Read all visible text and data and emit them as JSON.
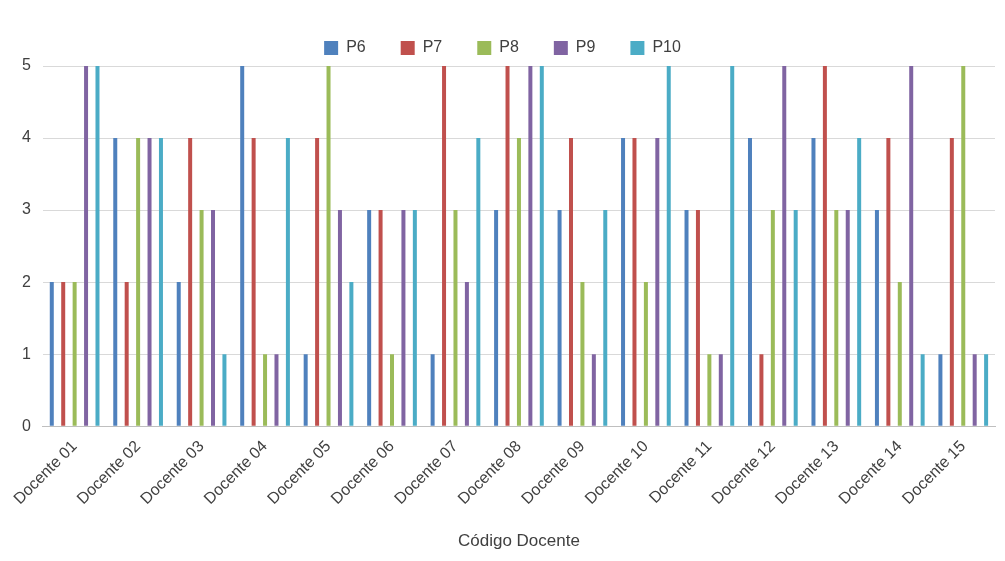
{
  "chart_data": {
    "type": "bar",
    "xlabel": "Código Docente",
    "categories": [
      "Docente 01",
      "Docente 02",
      "Docente 03",
      "Docente 04",
      "Docente 05",
      "Docente 06",
      "Docente 07",
      "Docente 08",
      "Docente 09",
      "Docente 10",
      "Docente 11",
      "Docente 12",
      "Docente 13",
      "Docente 14",
      "Docente 15"
    ],
    "series": [
      {
        "name": "P6",
        "color": "#4f81bd",
        "values": [
          2,
          4,
          2,
          5,
          1,
          3,
          1,
          3,
          3,
          4,
          3,
          4,
          4,
          3,
          1
        ]
      },
      {
        "name": "P7",
        "color": "#c0504d",
        "values": [
          2,
          2,
          4,
          4,
          4,
          3,
          5,
          5,
          4,
          4,
          3,
          1,
          5,
          4,
          4
        ]
      },
      {
        "name": "P8",
        "color": "#9bbb59",
        "values": [
          2,
          4,
          3,
          1,
          5,
          1,
          3,
          4,
          2,
          2,
          1,
          3,
          3,
          2,
          5
        ]
      },
      {
        "name": "P9",
        "color": "#8064a2",
        "values": [
          5,
          4,
          3,
          1,
          3,
          3,
          2,
          5,
          1,
          4,
          1,
          5,
          3,
          5,
          1
        ]
      },
      {
        "name": "P10",
        "color": "#4bacc6",
        "values": [
          5,
          4,
          1,
          4,
          2,
          3,
          4,
          5,
          3,
          5,
          5,
          3,
          4,
          1,
          1
        ]
      }
    ],
    "ylim": [
      0,
      5
    ],
    "yticks": [
      0,
      1,
      2,
      3,
      4,
      5
    ],
    "grid": "y",
    "legend": "top"
  }
}
